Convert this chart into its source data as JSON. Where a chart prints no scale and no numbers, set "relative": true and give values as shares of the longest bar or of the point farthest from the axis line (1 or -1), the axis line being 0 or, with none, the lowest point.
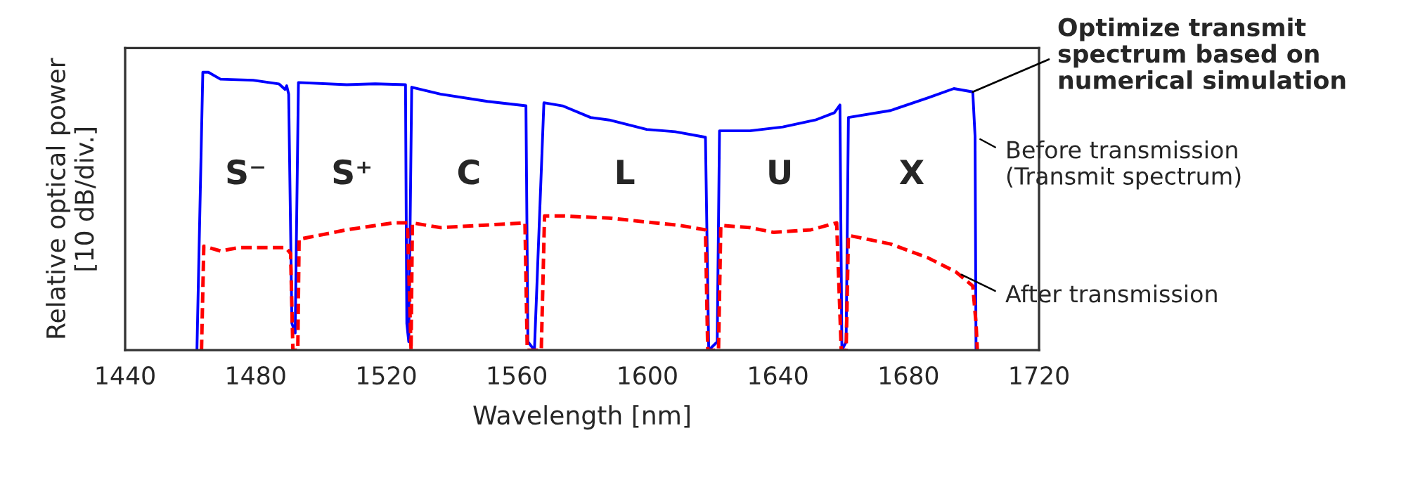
{
  "chart_data": {
    "type": "line",
    "relative": true,
    "xlabel": "Wavelength [nm]",
    "ylabel": "Relative optical power\n[10 dB/div.]",
    "xlim": [
      1440,
      1720
    ],
    "xticks": [
      1440,
      1480,
      1520,
      1560,
      1600,
      1640,
      1680,
      1720
    ],
    "grid": false,
    "legend": false,
    "marker": "none",
    "series": [
      {
        "name": "Before transmission\n(Transmit spectrum)",
        "color": "#0000ff",
        "line_style": "solid",
        "x": [
          1462.0,
          1463.8,
          1465.5,
          1469.2,
          1479.2,
          1487.1,
          1489.0,
          1489.5,
          1490.1,
          1491.1,
          1492.1,
          1493.1,
          1507.9,
          1516.6,
          1525.9,
          1526.3,
          1526.9,
          1527.8,
          1536.6,
          1551.0,
          1562.8,
          1563.4,
          1565.4,
          1568.3,
          1574.0,
          1582.6,
          1588.3,
          1599.8,
          1608.5,
          1617.8,
          1618.8,
          1621.4,
          1622.1,
          1631.4,
          1641.5,
          1651.5,
          1657.3,
          1659.0,
          1659.6,
          1660.9,
          1661.6,
          1674.5,
          1686.0,
          1693.9,
          1699.7,
          1700.4,
          1700.7
        ],
        "values": [
          0,
          1.0,
          1.0,
          0.975,
          0.971,
          0.958,
          0.938,
          0.951,
          0.921,
          0.096,
          0.062,
          0.963,
          0.955,
          0.958,
          0.955,
          0.096,
          0.03,
          0.946,
          0.921,
          0.895,
          0.879,
          0.03,
          0,
          0.89,
          0.879,
          0.837,
          0.828,
          0.794,
          0.786,
          0.766,
          0,
          0.03,
          0.789,
          0.789,
          0.803,
          0.828,
          0.854,
          0.882,
          0,
          0.03,
          0.837,
          0.862,
          0.908,
          0.941,
          0.929,
          0.769,
          0
        ]
      },
      {
        "name": "After transmission",
        "color": "#ff0000",
        "line_style": "dashed",
        "x": [
          1463.4,
          1464.1,
          1469.2,
          1474.9,
          1489.2,
          1490.7,
          1491.4,
          1492.9,
          1493.3,
          1507.9,
          1522.3,
          1526.5,
          1527.6,
          1528.0,
          1536.6,
          1562.5,
          1563.2,
          1567.5,
          1568.5,
          1574.0,
          1588.3,
          1609.9,
          1617.8,
          1618.5,
          1621.8,
          1622.5,
          1631.4,
          1638.6,
          1650.1,
          1658.0,
          1659.4,
          1660.9,
          1661.6,
          1674.5,
          1686.0,
          1694.6,
          1699.7,
          1700.7,
          1701.1
        ],
        "values": [
          0,
          0.374,
          0.357,
          0.369,
          0.369,
          0.348,
          0,
          0,
          0.399,
          0.433,
          0.458,
          0.458,
          0,
          0.458,
          0.441,
          0.458,
          0,
          0,
          0.483,
          0.483,
          0.475,
          0.449,
          0.433,
          0,
          0,
          0.449,
          0.441,
          0.424,
          0.433,
          0.458,
          0,
          0,
          0.413,
          0.382,
          0.332,
          0.281,
          0.231,
          0.096,
          0
        ]
      }
    ],
    "annotations": [
      "S⁻",
      "S⁺",
      "C",
      "L",
      "U",
      "X",
      {
        "text": "Optimize transmit\nspectrum based on\nnumerical simulation",
        "x": 1699.7,
        "y": 0.929
      }
    ]
  }
}
